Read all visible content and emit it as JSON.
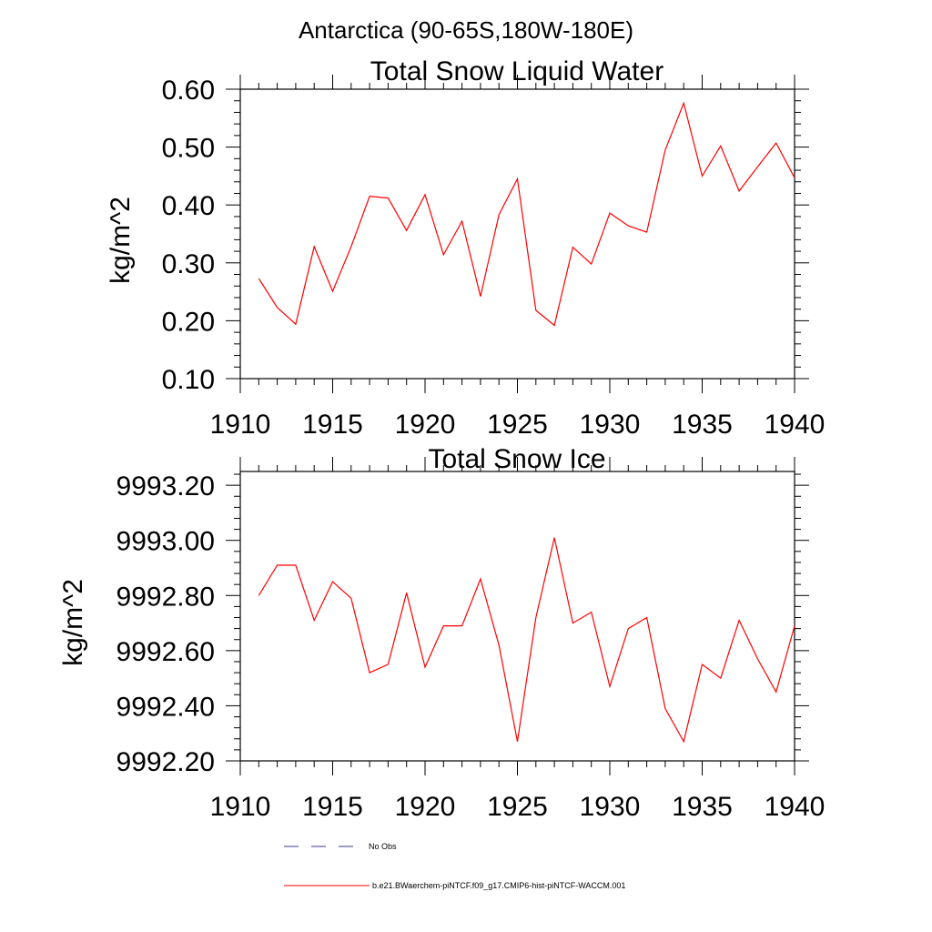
{
  "figure_title": "Antarctica (90-65S,180W-180E)",
  "colors": {
    "model_line": "#ff0000",
    "obs_line": "#3a3a8a",
    "axis": "#000000"
  },
  "chart_data": [
    {
      "type": "line",
      "title": "Total Snow Liquid Water",
      "xlabel": "",
      "ylabel": "kg/m^2",
      "xlim": [
        1910,
        1940
      ],
      "ylim": [
        0.1,
        0.6
      ],
      "xticks": [
        1910,
        1915,
        1920,
        1925,
        1930,
        1935,
        1940
      ],
      "yticks": [
        0.1,
        0.2,
        0.3,
        0.4,
        0.5,
        0.6
      ],
      "ytick_labels": [
        "0.10",
        "0.20",
        "0.30",
        "0.40",
        "0.50",
        "0.60"
      ],
      "grid": false,
      "series": [
        {
          "name": "b.e21.BWaerchem-piNTCF.f09_g17.CMIP6-hist-piNTCF-WACCM.001",
          "x": [
            1911,
            1912,
            1913,
            1914,
            1915,
            1916,
            1917,
            1918,
            1919,
            1920,
            1921,
            1922,
            1923,
            1924,
            1925,
            1926,
            1927,
            1928,
            1929,
            1930,
            1931,
            1932,
            1933,
            1934,
            1935,
            1936,
            1937,
            1938,
            1939,
            1940
          ],
          "values": [
            0.273,
            0.223,
            0.194,
            0.328,
            0.251,
            0.328,
            0.415,
            0.412,
            0.356,
            0.418,
            0.314,
            0.372,
            0.242,
            0.383,
            0.445,
            0.218,
            0.192,
            0.327,
            0.298,
            0.386,
            0.364,
            0.353,
            0.495,
            0.576,
            0.45,
            0.502,
            0.424,
            0.466,
            0.507,
            0.447
          ]
        }
      ]
    },
    {
      "type": "line",
      "title": "Total Snow Ice",
      "xlabel": "",
      "ylabel": "kg/m^2",
      "xlim": [
        1910,
        1940
      ],
      "ylim": [
        9992.2,
        9993.25
      ],
      "xticks": [
        1910,
        1915,
        1920,
        1925,
        1930,
        1935,
        1940
      ],
      "yticks": [
        9992.2,
        9992.4,
        9992.6,
        9992.8,
        9993.0,
        9993.2
      ],
      "ytick_labels": [
        "9992.20",
        "9992.40",
        "9992.60",
        "9992.80",
        "9993.00",
        "9993.20"
      ],
      "grid": false,
      "series": [
        {
          "name": "b.e21.BWaerchem-piNTCF.f09_g17.CMIP6-hist-piNTCF-WACCM.001",
          "x": [
            1911,
            1912,
            1913,
            1914,
            1915,
            1916,
            1917,
            1918,
            1919,
            1920,
            1921,
            1922,
            1923,
            1924,
            1925,
            1926,
            1927,
            1928,
            1929,
            1930,
            1931,
            1932,
            1933,
            1934,
            1935,
            1936,
            1937,
            1938,
            1939,
            1940
          ],
          "values": [
            9992.8,
            9992.91,
            9992.91,
            9992.71,
            9992.85,
            9992.79,
            9992.52,
            9992.55,
            9992.81,
            9992.54,
            9992.69,
            9992.69,
            9992.86,
            9992.62,
            9992.27,
            9992.72,
            9993.01,
            9992.7,
            9992.74,
            9992.47,
            9992.68,
            9992.72,
            9992.39,
            9992.27,
            9992.55,
            9992.5,
            9992.71,
            9992.57,
            9992.45,
            9992.69
          ]
        }
      ]
    }
  ],
  "legend": {
    "placement": "bottom",
    "entries": [
      {
        "label": "No Obs",
        "style": "dashed"
      },
      {
        "label": "b.e21.BWaerchem-piNTCF.f09_g17.CMIP6-hist-piNTCF-WACCM.001",
        "style": "solid"
      }
    ]
  }
}
